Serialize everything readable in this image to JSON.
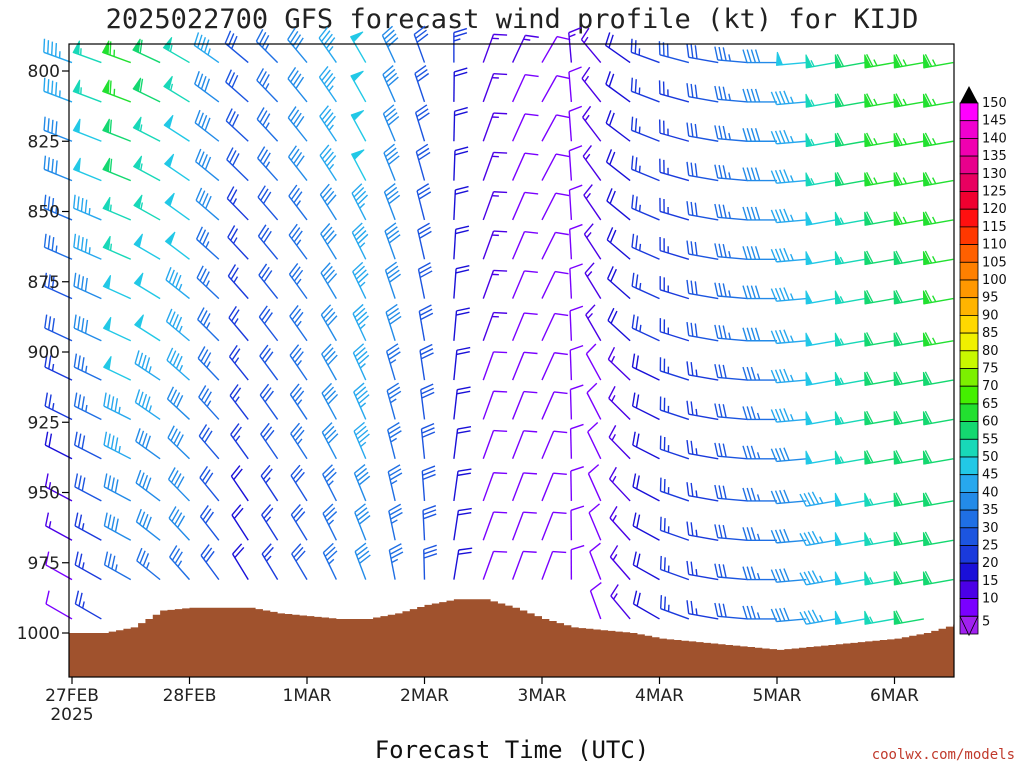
{
  "title": "2025022700 GFS forecast wind profile (kt) for KIJD",
  "credit": "coolwx.com/models",
  "chart_data": {
    "type": "wind_barb_time_height",
    "title": "2025022700 GFS forecast wind profile (kt) for KIJD",
    "xlabel": "Forecast Time (UTC)",
    "ylabel": "",
    "x_ticks": [
      "27FEB",
      "28FEB",
      "1MAR",
      "2MAR",
      "3MAR",
      "4MAR",
      "5MAR",
      "6MAR"
    ],
    "x_tick_sub": [
      "2025",
      "",
      "",
      "",
      "",
      "",
      "",
      ""
    ],
    "y_ticks": [
      800,
      825,
      850,
      875,
      900,
      925,
      950,
      975,
      1000
    ],
    "ylim": [
      1013,
      790
    ],
    "levels_hpa": [
      797,
      811,
      825,
      839,
      853,
      867,
      881,
      896,
      910,
      924,
      938,
      953,
      967,
      981,
      995
    ],
    "time_step_hours": 6,
    "time_count": 31,
    "surface_pressure_hpa": [
      1000,
      1000,
      998,
      992,
      991,
      991,
      991,
      993,
      994,
      995,
      995,
      993,
      990,
      988,
      988,
      991,
      995,
      998,
      999,
      1000,
      1002,
      1003,
      1004,
      1005,
      1006,
      1005,
      1004,
      1003,
      1002,
      1000,
      997
    ],
    "wind_speed_kt": {
      "anchor_hours": [
        0,
        12,
        24,
        36,
        48,
        60,
        72,
        84,
        96,
        108,
        120,
        132,
        144,
        156,
        168,
        180
      ],
      "upper_levels": [
        45,
        65,
        55,
        30,
        40,
        50,
        30,
        15,
        10,
        15,
        25,
        30,
        40,
        55,
        65,
        65
      ],
      "lower_levels": [
        10,
        35,
        35,
        20,
        30,
        40,
        30,
        10,
        10,
        10,
        20,
        25,
        35,
        45,
        55,
        60
      ]
    },
    "wind_direction_deg": {
      "anchor_hours": [
        0,
        12,
        24,
        36,
        48,
        60,
        72,
        84,
        96,
        108,
        120,
        132,
        144,
        156,
        168,
        180
      ],
      "upper_levels": [
        290,
        290,
        300,
        310,
        320,
        330,
        340,
        20,
        30,
        320,
        290,
        280,
        270,
        260,
        260,
        260
      ],
      "lower_levels": [
        300,
        300,
        320,
        330,
        330,
        340,
        360,
        20,
        20,
        340,
        300,
        280,
        270,
        260,
        260,
        260
      ]
    },
    "colorbar": {
      "values": [
        5,
        10,
        15,
        20,
        25,
        30,
        35,
        40,
        45,
        50,
        55,
        60,
        65,
        70,
        75,
        80,
        85,
        90,
        95,
        100,
        105,
        110,
        115,
        120,
        125,
        130,
        135,
        140,
        145,
        150
      ],
      "colors": [
        "#a020f0",
        "#7a00ff",
        "#4b00e6",
        "#1a10d8",
        "#1a3adc",
        "#1c55e0",
        "#1f6fe4",
        "#238be8",
        "#27a8ee",
        "#22c8e6",
        "#18d8b8",
        "#14d870",
        "#22e030",
        "#44f000",
        "#7cf000",
        "#c8f800",
        "#f0f000",
        "#ffd800",
        "#ffb400",
        "#ff9800",
        "#ff8000",
        "#ff6000",
        "#ff3800",
        "#ff1010",
        "#f00030",
        "#e80060",
        "#e8008c",
        "#f000b0",
        "#f000d0",
        "#ff00ff"
      ],
      "labels": [
        "5",
        "10",
        "15",
        "20",
        "25",
        "30",
        "35",
        "40",
        "45",
        "50",
        "55",
        "60",
        "65",
        "70",
        "75",
        "80",
        "85",
        "90",
        "95",
        "100",
        "105",
        "110",
        "115",
        "120",
        "125",
        "130",
        "135",
        "140",
        "145",
        "150"
      ]
    },
    "surface_color": "#a0522d",
    "grid": false,
    "legend": "right colorbar"
  }
}
